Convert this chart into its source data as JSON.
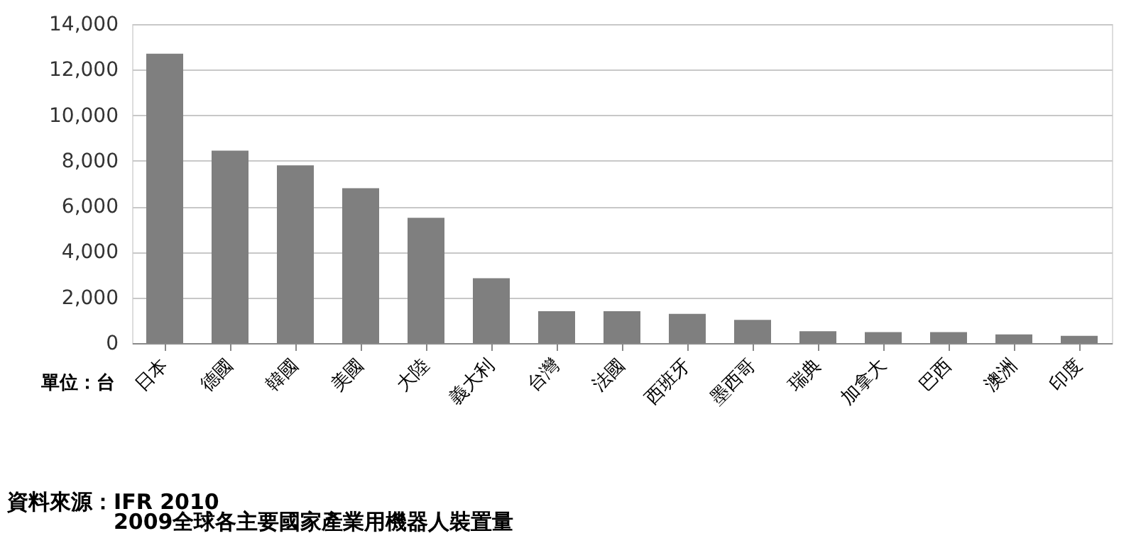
{
  "chart_data": {
    "type": "bar",
    "title": "2009全球各主要國家產業用機器人裝置量",
    "annotations": [
      "單位：台",
      "資料來源：IFR 2010"
    ],
    "categories": [
      "日本",
      "德國",
      "韓國",
      "美國",
      "大陸",
      "義大利",
      "台灣",
      "法國",
      "西班牙",
      "墨西哥",
      "瑞典",
      "加拿大",
      "巴西",
      "澳洲",
      "印度"
    ],
    "values": [
      12700,
      8450,
      7800,
      6800,
      5500,
      2850,
      1400,
      1400,
      1280,
      1020,
      520,
      480,
      480,
      380,
      320
    ],
    "color": "#7f7f7f",
    "ylim": [
      0,
      14000
    ],
    "yticks": [
      0,
      {
        "value": 2000,
        "label": "2,000"
      },
      {
        "value": 4000,
        "label": "4,000"
      },
      {
        "value": 6000,
        "label": "6,000"
      },
      {
        "value": 8000,
        "label": "8,000"
      },
      {
        "value": 10000,
        "label": "10,000"
      },
      {
        "value": 12000,
        "label": "12,000"
      },
      {
        "value": 14000,
        "label": "14,000"
      }
    ],
    "grid": "y"
  }
}
